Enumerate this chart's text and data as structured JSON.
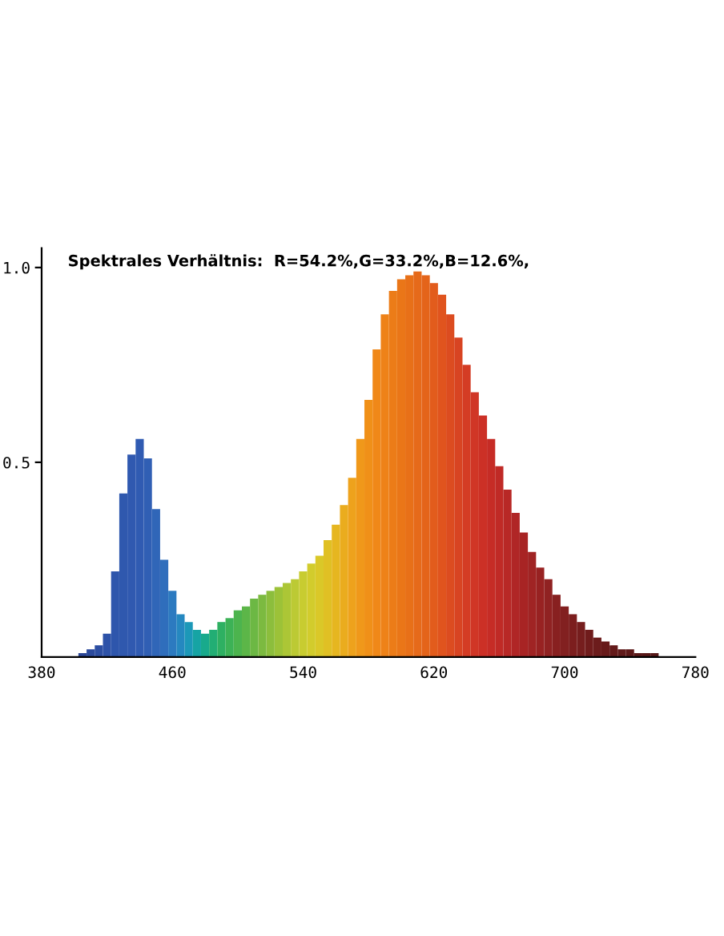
{
  "chart_data": {
    "type": "bar",
    "title": "Spektrales Verhältnis:  R=54.2%,G=33.2%,B=12.6%,",
    "x": [
      380,
      385,
      390,
      395,
      400,
      405,
      410,
      415,
      420,
      425,
      430,
      435,
      440,
      445,
      450,
      455,
      460,
      465,
      470,
      475,
      480,
      485,
      490,
      495,
      500,
      505,
      510,
      515,
      520,
      525,
      530,
      535,
      540,
      545,
      550,
      555,
      560,
      565,
      570,
      575,
      580,
      585,
      590,
      595,
      600,
      605,
      610,
      615,
      620,
      625,
      630,
      635,
      640,
      645,
      650,
      655,
      660,
      665,
      670,
      675,
      680,
      685,
      690,
      695,
      700,
      705,
      710,
      715,
      720,
      725,
      730,
      735,
      740,
      745,
      750,
      755,
      760,
      765,
      770,
      775,
      780
    ],
    "values": [
      0,
      0,
      0,
      0,
      0,
      0.01,
      0.02,
      0.03,
      0.06,
      0.22,
      0.42,
      0.52,
      0.56,
      0.51,
      0.38,
      0.25,
      0.17,
      0.11,
      0.09,
      0.07,
      0.06,
      0.07,
      0.09,
      0.1,
      0.12,
      0.13,
      0.15,
      0.16,
      0.17,
      0.18,
      0.19,
      0.2,
      0.22,
      0.24,
      0.26,
      0.3,
      0.34,
      0.39,
      0.46,
      0.56,
      0.66,
      0.79,
      0.88,
      0.94,
      0.97,
      0.98,
      0.99,
      0.98,
      0.96,
      0.93,
      0.88,
      0.82,
      0.75,
      0.68,
      0.62,
      0.56,
      0.49,
      0.43,
      0.37,
      0.32,
      0.27,
      0.23,
      0.2,
      0.16,
      0.13,
      0.11,
      0.09,
      0.07,
      0.05,
      0.04,
      0.03,
      0.02,
      0.02,
      0.01,
      0.01,
      0.01,
      0,
      0,
      0,
      0,
      0
    ],
    "colors": [
      "#2a3f8f",
      "#2a3f8f",
      "#2a3f8f",
      "#2a3f8f",
      "#2a3f8f",
      "#2a4596",
      "#2b4a9c",
      "#2c4ea2",
      "#2d52a8",
      "#2e56ac",
      "#2f58ae",
      "#3059b0",
      "#305bb2",
      "#305fb4",
      "#3066b8",
      "#2f6ebc",
      "#2c7ac0",
      "#2588c0",
      "#1c98b8",
      "#16a4a4",
      "#18aa8c",
      "#22ae74",
      "#2eb062",
      "#3cb256",
      "#4cb44e",
      "#5cb648",
      "#6cb844",
      "#7cba40",
      "#8cbe3c",
      "#9cc238",
      "#acc636",
      "#bcca34",
      "#c8cc30",
      "#d2cc2c",
      "#dac828",
      "#e0c024",
      "#e6b620",
      "#eaac1e",
      "#eea21c",
      "#f0981a",
      "#f09018",
      "#f08818",
      "#ee8218",
      "#ec7c18",
      "#ea7618",
      "#e87018",
      "#e66a1a",
      "#e4641a",
      "#e25c1c",
      "#e0541e",
      "#dc4c20",
      "#d84422",
      "#d43c24",
      "#d03626",
      "#cc3026",
      "#c62c26",
      "#c02a26",
      "#b82826",
      "#b02626",
      "#a82424",
      "#a02424",
      "#982222",
      "#902222",
      "#882020",
      "#822020",
      "#7c1e1e",
      "#761e1e",
      "#701c1c",
      "#6c1c1c",
      "#681a1a",
      "#641a1a",
      "#601a1a",
      "#5c1818",
      "#5a1818",
      "#581818",
      "#561818",
      "#541818",
      "#521818",
      "#501818",
      "#501818",
      "#501818"
    ],
    "xlim": [
      380,
      780
    ],
    "ylim": [
      0,
      1.05
    ],
    "xticks": [
      380,
      460,
      540,
      620,
      700,
      780
    ],
    "yticks": [
      {
        "value": 0.5,
        "label": "0.5"
      },
      {
        "value": 1,
        "label": "1.0"
      }
    ],
    "grid": false
  }
}
